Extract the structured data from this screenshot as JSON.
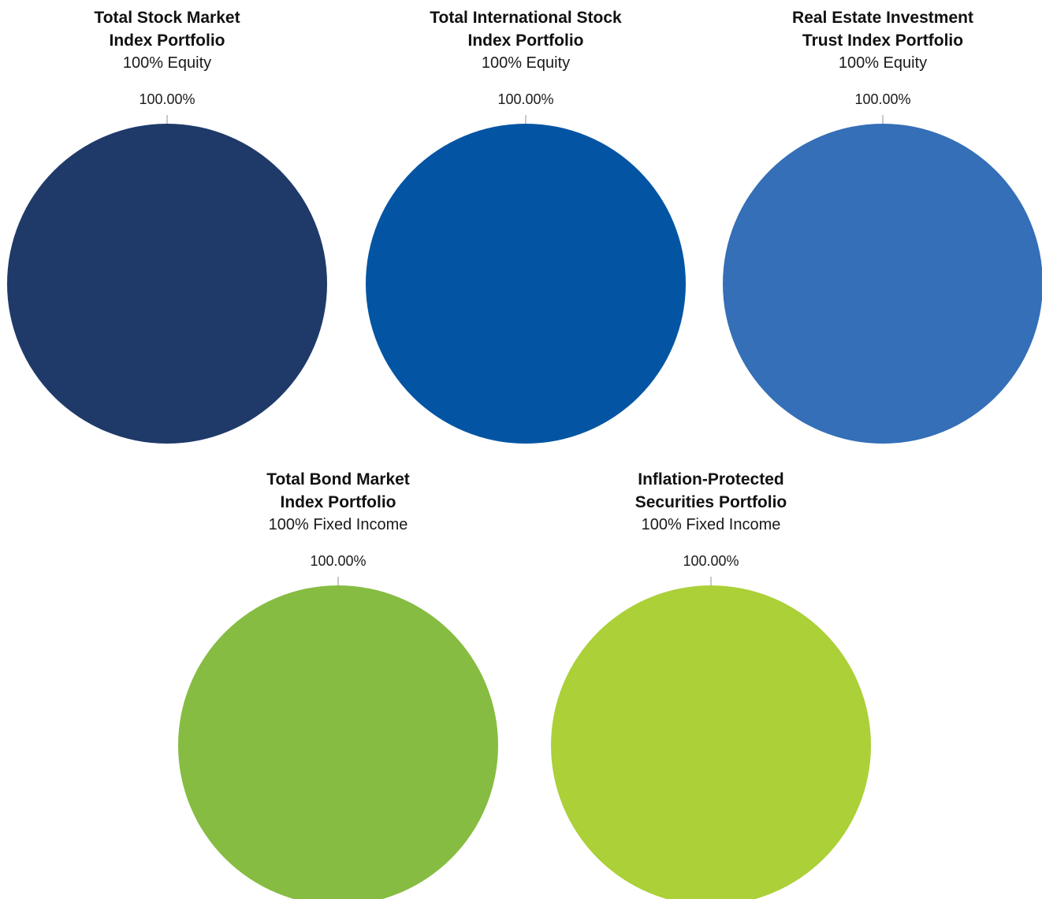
{
  "chart_data": [
    {
      "type": "pie",
      "title_lines": [
        "Total Stock Market",
        "Index Portfolio"
      ],
      "subtitle": "100% Equity",
      "slices": [
        {
          "label": "100.00%",
          "value": 100.0,
          "color": "#1f3a69"
        }
      ]
    },
    {
      "type": "pie",
      "title_lines": [
        "Total International Stock",
        "Index Portfolio"
      ],
      "subtitle": "100% Equity",
      "slices": [
        {
          "label": "100.00%",
          "value": 100.0,
          "color": "#0355a3"
        }
      ]
    },
    {
      "type": "pie",
      "title_lines": [
        "Real Estate Investment",
        "Trust Index Portfolio"
      ],
      "subtitle": "100% Equity",
      "slices": [
        {
          "label": "100.00%",
          "value": 100.0,
          "color": "#346fb7"
        }
      ]
    },
    {
      "type": "pie",
      "title_lines": [
        "Total Bond Market",
        "Index Portfolio"
      ],
      "subtitle": "100% Fixed Income",
      "slices": [
        {
          "label": "100.00%",
          "value": 100.0,
          "color": "#86bc41"
        }
      ]
    },
    {
      "type": "pie",
      "title_lines": [
        "Inflation-Protected",
        "Securities Portfolio"
      ],
      "subtitle": "100% Fixed Income",
      "slices": [
        {
          "label": "100.00%",
          "value": 100.0,
          "color": "#abd038"
        }
      ]
    }
  ],
  "leader_line_color": "#c8c8c8"
}
